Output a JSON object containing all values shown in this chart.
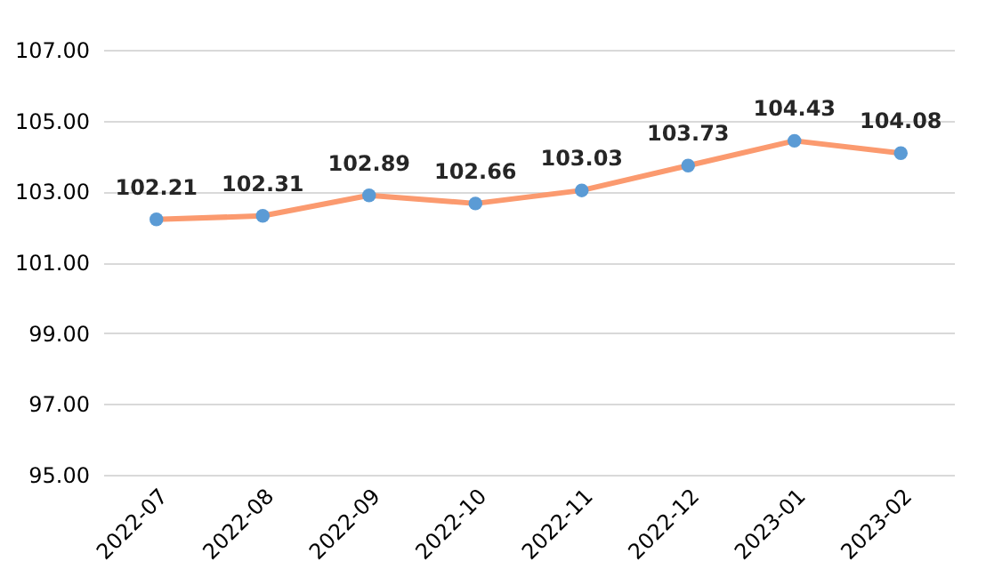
{
  "chart_data": {
    "type": "line",
    "categories": [
      "2022-07",
      "2022-08",
      "2022-09",
      "2022-10",
      "2022-11",
      "2022-12",
      "2023-01",
      "2023-02"
    ],
    "series": [
      {
        "color": "#fb9a6f",
        "values": [
          102.21,
          102.31,
          102.89,
          102.66,
          103.03,
          103.73,
          104.43,
          104.08
        ]
      }
    ],
    "ylim": [
      95,
      107
    ],
    "yticks": [
      {
        "value": 95,
        "label": "95.00"
      },
      {
        "value": 97,
        "label": "97.00"
      },
      {
        "value": 99,
        "label": "99.00"
      },
      {
        "value": 101,
        "label": "101.00"
      },
      {
        "value": 103,
        "label": "103.00"
      },
      {
        "value": 105,
        "label": "105.00"
      },
      {
        "value": 107,
        "label": "107.00"
      }
    ],
    "grid": "y",
    "marker": "circle",
    "data_labels": true
  }
}
